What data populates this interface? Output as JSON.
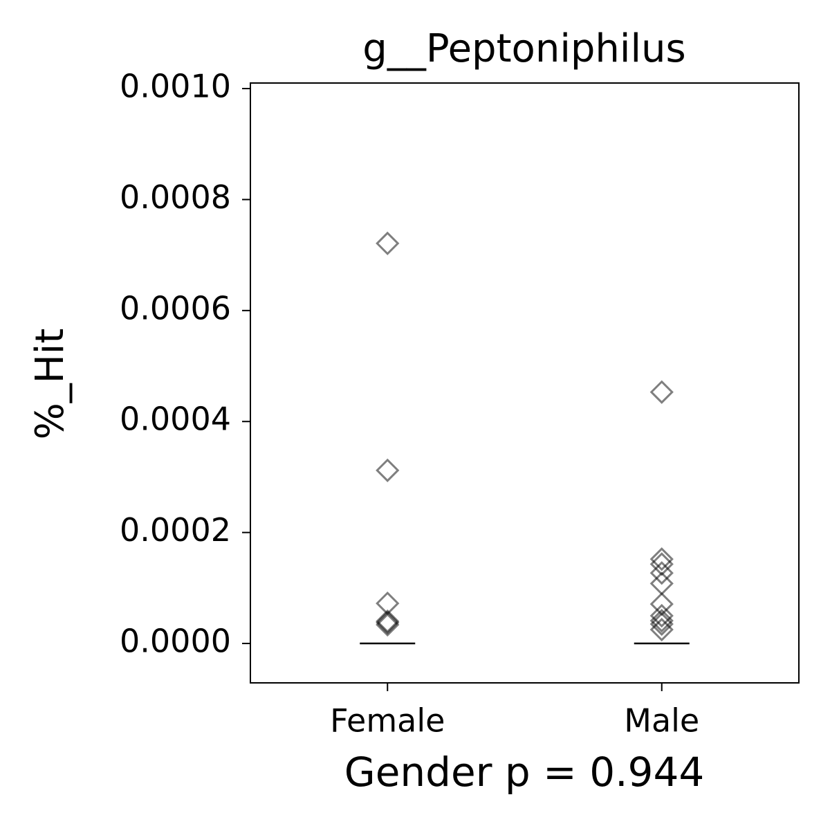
{
  "chart_data": {
    "type": "strip",
    "title": "g__Peptoniphilus",
    "x_label": "Gender p = 0.944",
    "y_label": "%_Hit",
    "categories": [
      "Female",
      "Male"
    ],
    "values": [
      [
        0.000721,
        0.000312,
        7.23e-05,
        4e-05,
        3.37e-05,
        3.74e-05
      ],
      [
        0.000453,
        0.000152,
        0.000143,
        0.000127,
        0.000108,
        7.1e-05,
        5e-05,
        4.1e-05,
        3.5e-05,
        2.5e-05
      ]
    ],
    "medians": [
      0,
      0
    ],
    "color": "#000000",
    "alpha": 0.5,
    "marker": "diamond",
    "ylim": [
      -7.1e-05,
      0.00101
    ],
    "yticks": [
      {
        "value": 0,
        "label": "0.0000"
      },
      {
        "value": 0.0002,
        "label": "0.0002"
      },
      {
        "value": 0.0004,
        "label": "0.0004"
      },
      {
        "value": 0.0006,
        "label": "0.0006"
      },
      {
        "value": 0.0008,
        "label": "0.0008"
      },
      {
        "value": 0.001,
        "label": "0.0010"
      }
    ]
  }
}
